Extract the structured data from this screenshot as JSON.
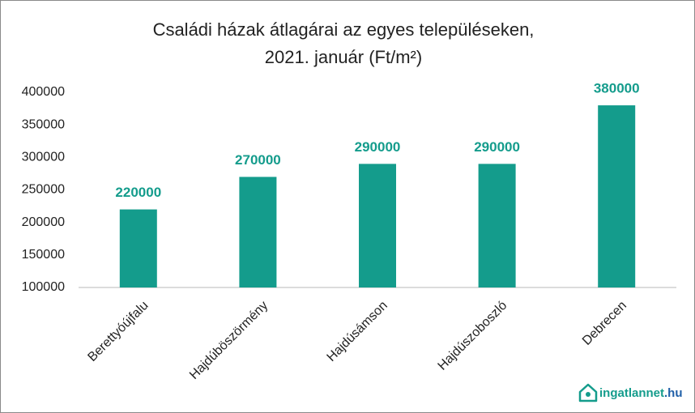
{
  "chart_data": {
    "type": "bar",
    "title": [
      "Családi házak átlagárai az egyes településeken,",
      "2021. január (Ft/m²)"
    ],
    "categories": [
      "Berettyóújfalu",
      "Hajdúböszörmény",
      "Hajdúsámson",
      "Hajdúszoboszló",
      "Debrecen"
    ],
    "values": [
      220000,
      270000,
      290000,
      290000,
      380000
    ],
    "color": "#149c8c",
    "ylim": [
      100000,
      400000
    ],
    "yticks": [
      100000,
      150000,
      200000,
      250000,
      300000,
      350000,
      400000
    ],
    "grid": false,
    "data_labels": true
  },
  "logo": {
    "name": "ingatlannet",
    "tld": ".hu"
  }
}
